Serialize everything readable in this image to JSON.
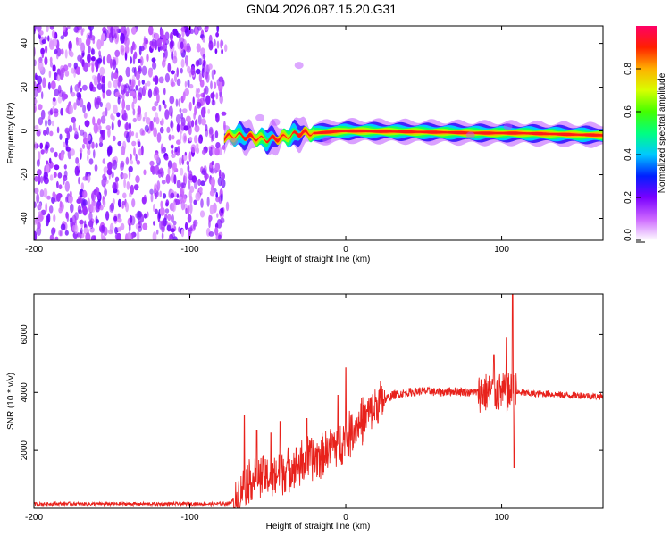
{
  "title": "GN04.2026.087.15.20.G31",
  "chart_data": [
    {
      "type": "heatmap",
      "xlabel": "Height of straight line (km)",
      "ylabel": "Frequency (Hz)",
      "xlim": [
        -200,
        165
      ],
      "ylim": [
        -50,
        48
      ],
      "xticks": [
        "-200",
        "-100",
        "0",
        "100"
      ],
      "yticks": [
        "40",
        "20",
        "0",
        "-20",
        "-40"
      ],
      "colorbar": {
        "label": "Normalized spectral amplitude",
        "range": [
          0,
          1
        ],
        "ticks": [
          "0.0",
          "0.2",
          "0.4",
          "0.6",
          "0.8"
        ]
      },
      "features": {
        "noise_region_x": [
          -200,
          -78
        ],
        "signal_track": [
          {
            "x": -78,
            "y": -3
          },
          {
            "x": -70,
            "y": -2
          },
          {
            "x": -60,
            "y": -3
          },
          {
            "x": -50,
            "y": -4
          },
          {
            "x": -40,
            "y": -3
          },
          {
            "x": -30,
            "y": -1
          },
          {
            "x": -20,
            "y": -1
          },
          {
            "x": 0,
            "y": 0
          },
          {
            "x": 50,
            "y": -0.5
          },
          {
            "x": 90,
            "y": -1
          },
          {
            "x": 110,
            "y": -1
          },
          {
            "x": 165,
            "y": -2
          }
        ]
      }
    },
    {
      "type": "line",
      "xlabel": "Height of straight line (km)",
      "ylabel": "SNR (10 * v/v)",
      "xlim": [
        -200,
        165
      ],
      "ylim": [
        0,
        7400
      ],
      "xticks": [
        "-200",
        "-100",
        "0",
        "100"
      ],
      "yticks": [
        "6000",
        "4000",
        "2000"
      ],
      "color": "#e8221c",
      "series": [
        {
          "points": [
            [
              -200,
              150
            ],
            [
              -180,
              160
            ],
            [
              -160,
              150
            ],
            [
              -140,
              155
            ],
            [
              -120,
              150
            ],
            [
              -100,
              160
            ],
            [
              -85,
              150
            ],
            [
              -75,
              170
            ],
            [
              -70,
              350
            ],
            [
              -65,
              900
            ],
            [
              -60,
              1000
            ],
            [
              -55,
              1100
            ],
            [
              -50,
              1050
            ],
            [
              -45,
              1150
            ],
            [
              -40,
              1300
            ],
            [
              -35,
              1450
            ],
            [
              -30,
              1500
            ],
            [
              -25,
              1650
            ],
            [
              -20,
              1750
            ],
            [
              -15,
              1900
            ],
            [
              -10,
              2100
            ],
            [
              -5,
              2250
            ],
            [
              0,
              2400
            ],
            [
              5,
              2700
            ],
            [
              10,
              3000
            ],
            [
              15,
              3300
            ],
            [
              20,
              3550
            ],
            [
              25,
              3750
            ],
            [
              30,
              3900
            ],
            [
              40,
              4000
            ],
            [
              50,
              4050
            ],
            [
              60,
              4000
            ],
            [
              70,
              4050
            ],
            [
              80,
              4000
            ],
            [
              90,
              4000
            ],
            [
              100,
              4000
            ],
            [
              105,
              4000
            ],
            [
              110,
              4000
            ],
            [
              120,
              3950
            ],
            [
              130,
              3950
            ],
            [
              140,
              3900
            ],
            [
              150,
              3900
            ],
            [
              165,
              3850
            ]
          ]
        }
      ],
      "spikes": [
        {
          "x": -65,
          "y": 3200
        },
        {
          "x": -57,
          "y": 2700
        },
        {
          "x": -48,
          "y": 2600
        },
        {
          "x": -42,
          "y": 3000
        },
        {
          "x": -25,
          "y": 3100
        },
        {
          "x": -5,
          "y": 3900
        },
        {
          "x": 0,
          "y": 4850
        },
        {
          "x": 95,
          "y": 5300
        },
        {
          "x": 103,
          "y": 5900
        },
        {
          "x": 107,
          "y": 7400
        },
        {
          "x": 108,
          "y": 1400
        }
      ]
    }
  ]
}
